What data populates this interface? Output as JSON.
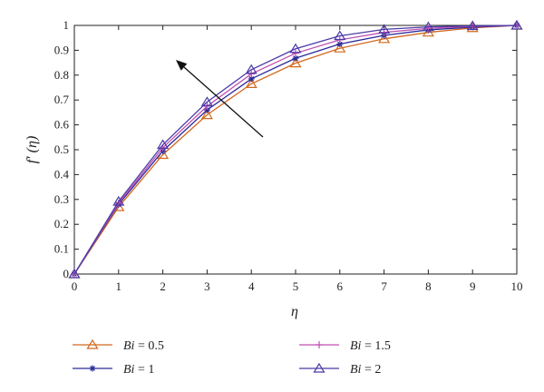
{
  "chart_data": {
    "type": "line",
    "xlabel": "η",
    "ylabel": "f′ (η)",
    "xlim": [
      0,
      10
    ],
    "ylim": [
      0,
      1
    ],
    "x_ticks": [
      "0",
      "1",
      "2",
      "3",
      "4",
      "5",
      "6",
      "7",
      "8",
      "9",
      "10"
    ],
    "y_ticks": [
      "0",
      "0.1",
      "0.2",
      "0.3",
      "0.4",
      "0.5",
      "0.6",
      "0.7",
      "0.8",
      "0.9",
      "1"
    ],
    "grid": false,
    "legend_position": "below",
    "annotation": "arrow pointing up-left indicating increasing Bi",
    "x": [
      0,
      1,
      2,
      3,
      4,
      5,
      6,
      7,
      8,
      9,
      10
    ],
    "series": [
      {
        "name": "Bi = 0.5",
        "var": "Bi",
        "value": "0.5",
        "color": "#d2691e",
        "marker": "triangle",
        "values": [
          0,
          0.27,
          0.48,
          0.64,
          0.765,
          0.848,
          0.908,
          0.946,
          0.972,
          0.99,
          1.0
        ]
      },
      {
        "name": "Bi = 1",
        "var": "Bi",
        "value": "1",
        "color": "#2b2a9a",
        "marker": "star",
        "values": [
          0,
          0.28,
          0.495,
          0.66,
          0.785,
          0.868,
          0.925,
          0.96,
          0.982,
          0.993,
          1.0
        ]
      },
      {
        "name": "Bi = 1.5",
        "var": "Bi",
        "value": "1.5",
        "color": "#c04fb0",
        "marker": "plus",
        "values": [
          0,
          0.285,
          0.508,
          0.675,
          0.805,
          0.888,
          0.942,
          0.972,
          0.988,
          0.996,
          1.0
        ]
      },
      {
        "name": "Bi = 2",
        "var": "Bi",
        "value": "2",
        "color": "#4b3ba8",
        "marker": "triangle",
        "values": [
          0,
          0.292,
          0.52,
          0.692,
          0.822,
          0.906,
          0.958,
          0.984,
          0.994,
          0.998,
          1.0
        ]
      }
    ]
  }
}
